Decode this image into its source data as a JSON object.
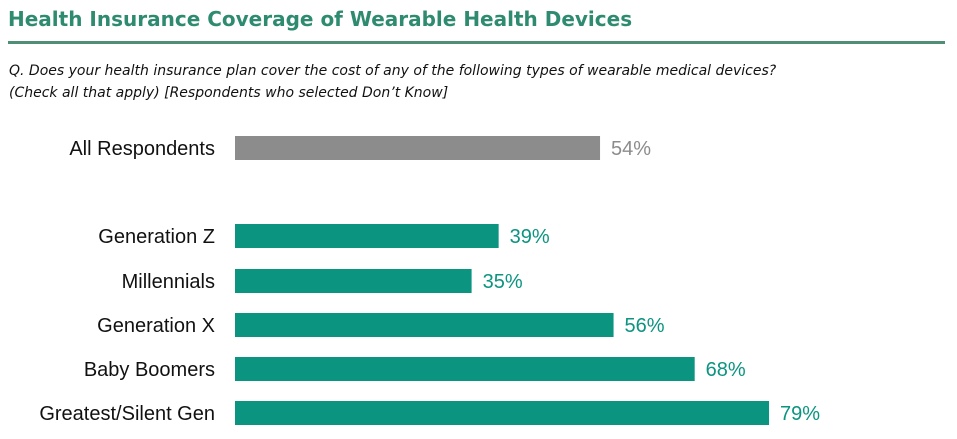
{
  "header": {
    "title": "Health Insurance Coverage of Wearable Health Devices",
    "question_line1": "Q. Does your health insurance plan cover the cost of any of the following types of wearable medical devices?",
    "question_line2": "(Check all that apply) [Respondents who selected Don’t Know]"
  },
  "colors": {
    "title": "#2e8b6f",
    "rule": "#4e8f75",
    "total_bar": "#8c8c8c",
    "total_label": "#8c8c8c",
    "group_bar": "#0b9480",
    "group_label": "#0b9480"
  },
  "chart_data": {
    "type": "bar",
    "orientation": "horizontal",
    "title": "Health Insurance Coverage of Wearable Health Devices",
    "categories": [
      "All Respondents",
      "Generation Z",
      "Millennials",
      "Generation X",
      "Baby Boomers",
      "Greatest/Silent Gen"
    ],
    "values": [
      54,
      39,
      35,
      56,
      68,
      79
    ],
    "value_labels": [
      "54%",
      "39%",
      "35%",
      "56%",
      "68%",
      "79%"
    ],
    "unit": "%",
    "xlim": [
      0,
      100
    ],
    "grid": false,
    "legend": "none"
  }
}
